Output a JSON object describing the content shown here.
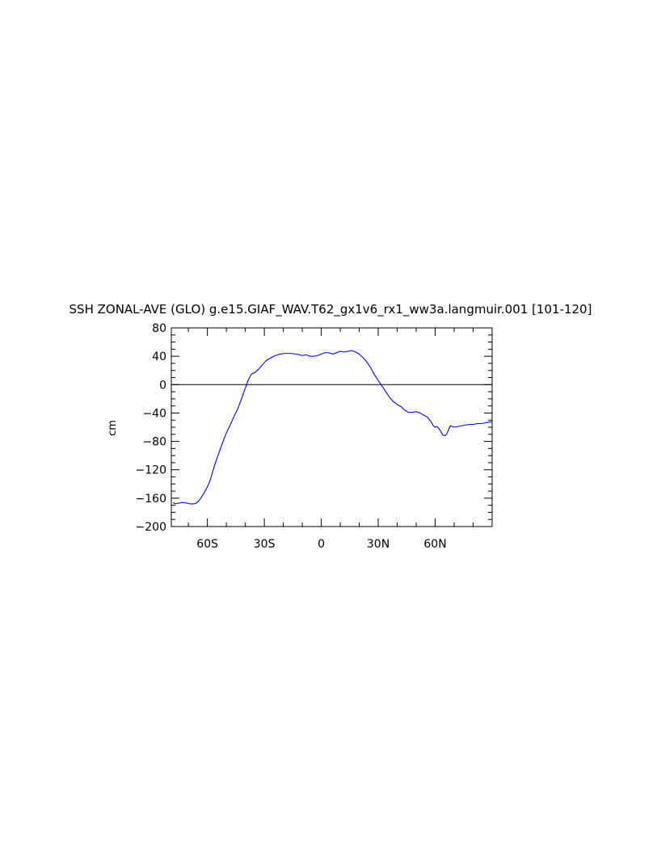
{
  "chart_data": {
    "type": "line",
    "title": "SSH ZONAL-AVE (GLO) g.e15.GIAF_WAV.T62_gx1v6_rx1_ww3a.langmuir.001 [101-120]",
    "xlabel": "",
    "ylabel": "cm",
    "xlim": [
      -79,
      90
    ],
    "ylim": [
      -200,
      80
    ],
    "x_ticks": [
      {
        "value": -60,
        "label": "60S"
      },
      {
        "value": -30,
        "label": "30S"
      },
      {
        "value": 0,
        "label": "0"
      },
      {
        "value": 30,
        "label": "30N"
      },
      {
        "value": 60,
        "label": "60N"
      }
    ],
    "y_ticks": [
      {
        "value": 80,
        "label": "80"
      },
      {
        "value": 40,
        "label": "40"
      },
      {
        "value": 0,
        "label": "0"
      },
      {
        "value": -40,
        "label": "−40"
      },
      {
        "value": -80,
        "label": "−80"
      },
      {
        "value": -120,
        "label": "−120"
      },
      {
        "value": -160,
        "label": "−160"
      },
      {
        "value": -200,
        "label": "−200"
      }
    ],
    "zero_line": true,
    "grid": false,
    "line_color": "#0000ff",
    "axis_color": "#000000",
    "series": [
      {
        "x": [
          -78,
          -77,
          -75,
          -73,
          -71,
          -69,
          -67,
          -66,
          -65,
          -64,
          -63,
          -62,
          -61,
          -60,
          -59,
          -58,
          -57,
          -56,
          -55,
          -54,
          -53,
          -52,
          -51,
          -50,
          -48,
          -46,
          -44,
          -42,
          -41,
          -40,
          -39,
          -38,
          -37,
          -36,
          -35,
          -33,
          -31,
          -29,
          -27,
          -25,
          -22,
          -19,
          -16,
          -13,
          -10,
          -8,
          -6,
          -4,
          -2,
          0,
          2,
          4,
          6,
          8,
          10,
          12,
          14,
          16,
          18,
          20,
          22,
          24,
          26,
          28,
          30,
          32,
          34,
          36,
          38,
          40,
          42,
          44,
          46,
          48,
          50,
          52,
          54,
          56,
          58,
          59,
          60,
          61,
          62,
          63,
          64,
          65,
          66,
          67,
          68,
          69,
          70,
          72,
          74,
          76,
          78,
          80,
          82,
          84,
          86,
          88,
          90
        ],
        "y": [
          -166,
          -168,
          -167,
          -166,
          -167,
          -168,
          -168,
          -167,
          -165,
          -162,
          -158,
          -154,
          -149,
          -144,
          -138,
          -130,
          -121,
          -112,
          -104,
          -97,
          -89,
          -82,
          -75,
          -68,
          -57,
          -45,
          -34,
          -20,
          -12,
          -5,
          3,
          9,
          14,
          16,
          17,
          22,
          28,
          34,
          37,
          40,
          43,
          44,
          44,
          43,
          41,
          42,
          40,
          40,
          41,
          43,
          45,
          45,
          43,
          45,
          47,
          46,
          47,
          48,
          46,
          43,
          38,
          32,
          24,
          14,
          6,
          -2,
          -10,
          -18,
          -24,
          -28,
          -31,
          -36,
          -39,
          -39,
          -38,
          -40,
          -43,
          -46,
          -53,
          -58,
          -60,
          -59,
          -62,
          -66,
          -71,
          -72,
          -70,
          -64,
          -58,
          -59,
          -60,
          -59,
          -58,
          -57,
          -56,
          -56,
          -55,
          -55,
          -54,
          -53,
          -52
        ]
      }
    ]
  }
}
